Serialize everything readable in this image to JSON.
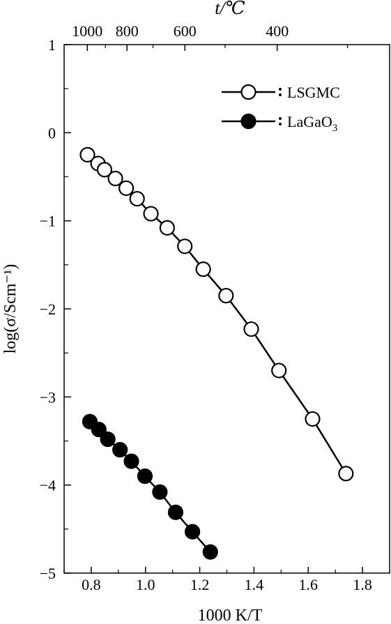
{
  "chart_data": {
    "type": "line",
    "xlabel": "1000 K/T",
    "ylabel": "log(σ/Scm⁻¹)",
    "top_axis_label": "t/℃",
    "xlim": [
      0.7,
      1.9
    ],
    "ylim": [
      -5,
      1
    ],
    "x_ticks": [
      0.8,
      1.0,
      1.2,
      1.4,
      1.6,
      1.8
    ],
    "x_tick_labels": [
      "0.8",
      "1.0",
      "1.2",
      "1.4",
      "1.6",
      "1.8"
    ],
    "y_ticks": [
      1,
      0,
      -1,
      -2,
      -3,
      -4,
      -5
    ],
    "y_tick_labels": [
      "1",
      "0",
      "−1",
      "−2",
      "−3",
      "−4",
      "−5"
    ],
    "top_ticks": [
      1000,
      800,
      600,
      400
    ],
    "top_tick_labels": [
      "1000",
      "800",
      "600",
      "400"
    ],
    "legend_position": "top-right",
    "grid": false,
    "series": [
      {
        "name": "LSGMC",
        "marker": "open-circle",
        "color": "#000000",
        "x": [
          0.786,
          0.825,
          0.849,
          0.889,
          0.929,
          0.969,
          1.02,
          1.08,
          1.145,
          1.213,
          1.297,
          1.39,
          1.492,
          1.616,
          1.739
        ],
        "y": [
          -0.25,
          -0.35,
          -0.42,
          -0.52,
          -0.63,
          -0.75,
          -0.92,
          -1.08,
          -1.29,
          -1.55,
          -1.85,
          -2.23,
          -2.7,
          -3.25,
          -3.87
        ]
      },
      {
        "name": "LaGaO3",
        "marker": "filled-circle",
        "color": "#000000",
        "x": [
          0.795,
          0.828,
          0.861,
          0.906,
          0.948,
          0.998,
          1.053,
          1.111,
          1.173,
          1.239
        ],
        "y": [
          -3.28,
          -3.37,
          -3.48,
          -3.6,
          -3.73,
          -3.9,
          -4.08,
          -4.31,
          -4.53,
          -4.76
        ]
      }
    ]
  }
}
